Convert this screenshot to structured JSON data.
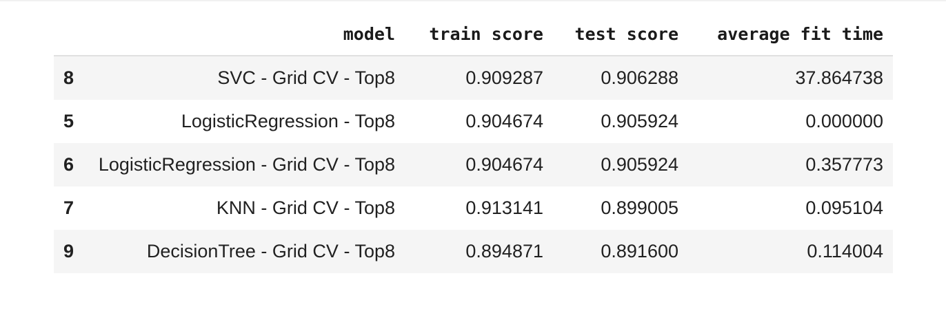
{
  "table": {
    "columns": [
      "",
      "model",
      "train score",
      "test score",
      "average fit time"
    ],
    "rows": [
      {
        "index": "8",
        "model": "SVC - Grid CV - Top8",
        "train_score": "0.909287",
        "test_score": "0.906288",
        "avg_fit_time": "37.864738"
      },
      {
        "index": "5",
        "model": "LogisticRegression - Top8",
        "train_score": "0.904674",
        "test_score": "0.905924",
        "avg_fit_time": "0.000000"
      },
      {
        "index": "6",
        "model": "LogisticRegression - Grid CV - Top8",
        "train_score": "0.904674",
        "test_score": "0.905924",
        "avg_fit_time": "0.357773"
      },
      {
        "index": "7",
        "model": "KNN - Grid CV - Top8",
        "train_score": "0.913141",
        "test_score": "0.899005",
        "avg_fit_time": "0.095104"
      },
      {
        "index": "9",
        "model": "DecisionTree - Grid CV - Top8",
        "train_score": "0.894871",
        "test_score": "0.891600",
        "avg_fit_time": "0.114004"
      }
    ]
  },
  "colors": {
    "striped_row": "#f5f5f5",
    "header_border": "#e0e0e0",
    "text": "#212121"
  }
}
